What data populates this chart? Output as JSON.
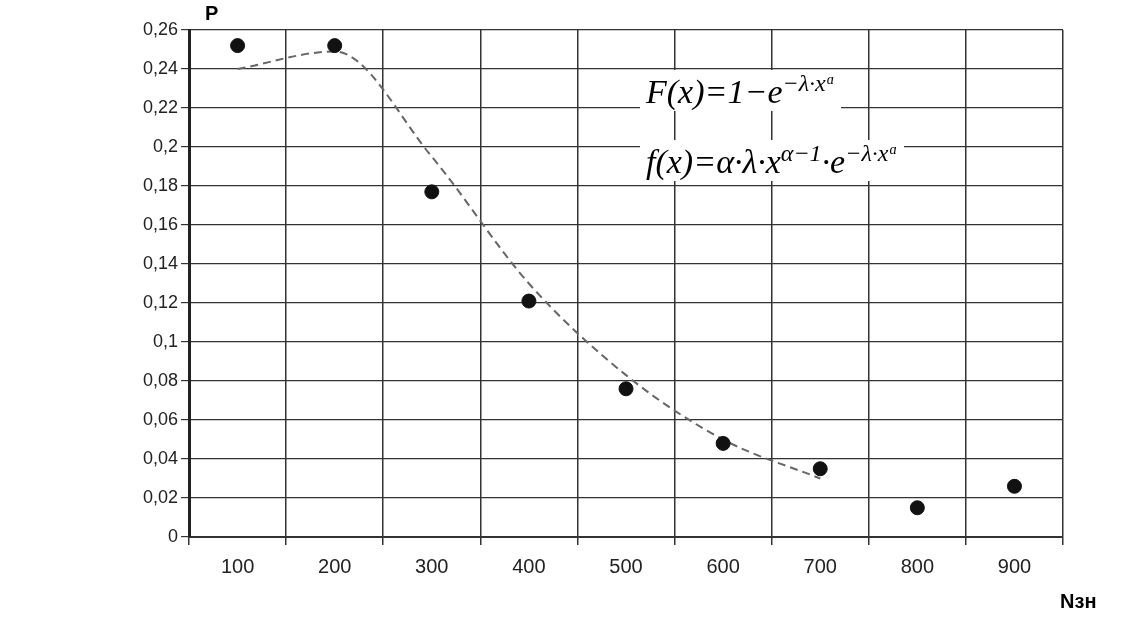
{
  "chart_data": {
    "type": "scatter",
    "xlabel": "Nзн",
    "ylabel": "P",
    "categories": [
      "100",
      "200",
      "300",
      "400",
      "500",
      "600",
      "700",
      "800",
      "900"
    ],
    "series": [
      {
        "type": "scatter",
        "color": "#111111",
        "marker": "circle",
        "values": [
          0.252,
          0.252,
          0.177,
          0.121,
          0.076,
          0.048,
          0.035,
          0.015,
          0.026
        ]
      },
      {
        "type": "line",
        "color": "#666666",
        "marker": "none",
        "line_style": "dashed",
        "values": [
          0.24,
          0.249,
          0.195,
          0.13,
          0.083,
          0.05,
          0.03,
          null,
          null
        ]
      }
    ],
    "ylim": [
      0,
      0.26
    ],
    "yticks": [
      {
        "value": 0,
        "label": "0"
      },
      {
        "value": 0.02,
        "label": "0,02"
      },
      {
        "value": 0.04,
        "label": "0,04"
      },
      {
        "value": 0.06,
        "label": "0,06"
      },
      {
        "value": 0.08,
        "label": "0,08"
      },
      {
        "value": 0.1,
        "label": "0,1"
      },
      {
        "value": 0.12,
        "label": "0,12"
      },
      {
        "value": 0.14,
        "label": "0,14"
      },
      {
        "value": 0.16,
        "label": "0,16"
      },
      {
        "value": 0.18,
        "label": "0,18"
      },
      {
        "value": 0.2,
        "label": "0,2"
      },
      {
        "value": 0.22,
        "label": "0,22"
      },
      {
        "value": 0.24,
        "label": "0,24"
      },
      {
        "value": 0.26,
        "label": "0,26"
      }
    ],
    "grid": true,
    "legend": false,
    "annotations": [
      "F(x)=1−e$^{−λ·xᵅ}$",
      "f(x)=α·λ·x$^{α−1}$·e$^{−λ·xᵅ}$"
    ]
  }
}
